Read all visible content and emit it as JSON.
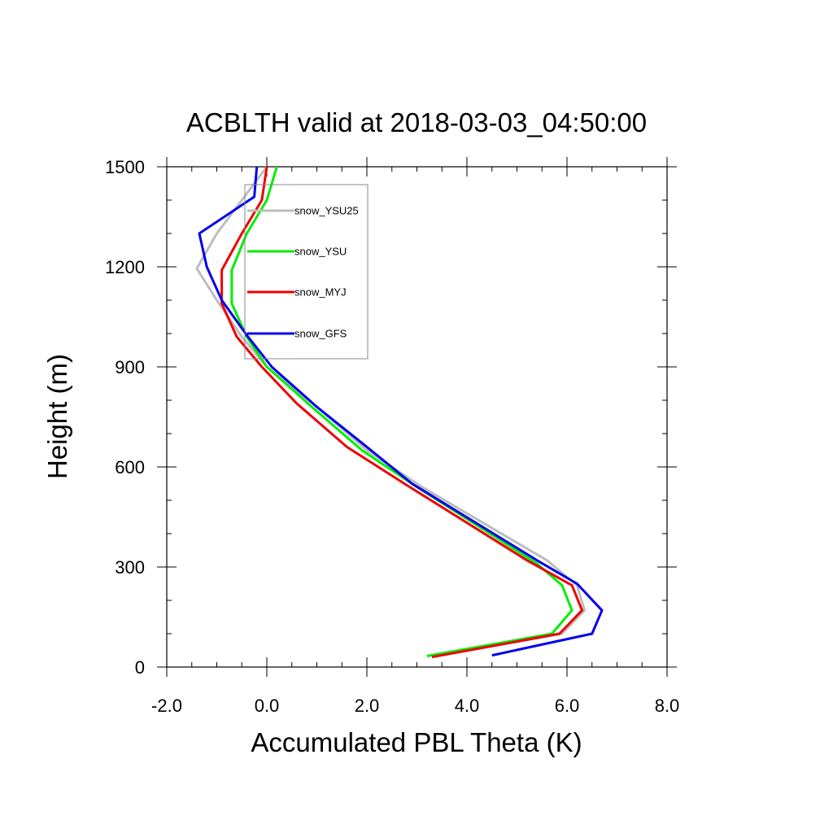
{
  "chart_data": {
    "type": "line",
    "title": "ACBLTH valid at 2018-03-03_04:50:00",
    "xlabel": "Accumulated PBL Theta (K)",
    "ylabel": "Height (m)",
    "xlim": [
      -2.0,
      8.0
    ],
    "ylim": [
      0,
      1500
    ],
    "xticks": [
      -2.0,
      0.0,
      2.0,
      4.0,
      6.0,
      8.0
    ],
    "xtick_labels": [
      "-2.0",
      "0.0",
      "2.0",
      "4.0",
      "6.0",
      "8.0"
    ],
    "yticks": [
      0,
      300,
      600,
      900,
      1200,
      1500
    ],
    "ytick_labels": [
      "0",
      "300",
      "600",
      "900",
      "1200",
      "1500"
    ],
    "grid": false,
    "legend_placement": "top-left",
    "series": [
      {
        "name": "snow_YSU25",
        "color": "#bdbdbd",
        "points": [
          [
            3.4,
            33
          ],
          [
            5.9,
            100
          ],
          [
            6.35,
            170
          ],
          [
            6.2,
            245
          ],
          [
            5.6,
            320
          ],
          [
            3.1,
            540
          ],
          [
            2.0,
            650
          ],
          [
            1.0,
            780
          ],
          [
            0.0,
            900
          ],
          [
            -0.5,
            990
          ],
          [
            -1.0,
            1100
          ],
          [
            -1.4,
            1195
          ],
          [
            -1.0,
            1300
          ],
          [
            -0.5,
            1400
          ],
          [
            0.0,
            1500
          ]
        ]
      },
      {
        "name": "snow_YSU",
        "color": "#00ee00",
        "points": [
          [
            3.2,
            33
          ],
          [
            5.7,
            100
          ],
          [
            6.1,
            170
          ],
          [
            5.9,
            245
          ],
          [
            5.4,
            310
          ],
          [
            3.0,
            540
          ],
          [
            1.9,
            650
          ],
          [
            0.9,
            780
          ],
          [
            0.0,
            900
          ],
          [
            -0.4,
            990
          ],
          [
            -0.7,
            1090
          ],
          [
            -0.7,
            1190
          ],
          [
            -0.4,
            1300
          ],
          [
            0.0,
            1400
          ],
          [
            0.2,
            1500
          ]
        ]
      },
      {
        "name": "snow_MYJ",
        "color": "#ee0000",
        "points": [
          [
            3.3,
            30
          ],
          [
            5.85,
            100
          ],
          [
            6.3,
            170
          ],
          [
            6.1,
            245
          ],
          [
            5.2,
            320
          ],
          [
            2.8,
            545
          ],
          [
            1.6,
            660
          ],
          [
            0.6,
            790
          ],
          [
            -0.1,
            900
          ],
          [
            -0.6,
            990
          ],
          [
            -0.9,
            1090
          ],
          [
            -0.9,
            1190
          ],
          [
            -0.5,
            1300
          ],
          [
            -0.1,
            1400
          ],
          [
            0.0,
            1500
          ]
        ]
      },
      {
        "name": "snow_GFS",
        "color": "#0000ee",
        "points": [
          [
            4.5,
            35
          ],
          [
            6.5,
            100
          ],
          [
            6.7,
            170
          ],
          [
            6.2,
            250
          ],
          [
            5.4,
            320
          ],
          [
            2.9,
            550
          ],
          [
            2.0,
            660
          ],
          [
            1.0,
            780
          ],
          [
            0.1,
            900
          ],
          [
            -0.4,
            995
          ],
          [
            -0.9,
            1100
          ],
          [
            -1.2,
            1200
          ],
          [
            -1.35,
            1300
          ],
          [
            -0.25,
            1410
          ],
          [
            -0.2,
            1500
          ]
        ]
      }
    ]
  }
}
